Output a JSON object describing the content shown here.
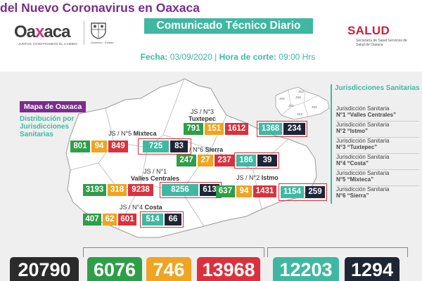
{
  "header": {
    "brand": {
      "pre": "Oa",
      "x": "x",
      "post": "aca",
      "tagline": "JUNTOS CONSTRUIMOS EL CAMBIO",
      "seal_caption": "Gobierno · Estado"
    },
    "title_line1": "Comunicado Técnico Diario",
    "title_line2": "del Nuevo Coronavirus en Oaxaca",
    "date_label": "Fecha:",
    "date_value": "03/09/2020",
    "separator": "|",
    "cut_label": "Hora de corte:",
    "cut_value": "09:00 Hrs",
    "salud": "SALUD",
    "salud_sub": "Secretaría de Salud Servicios de Salud de Oaxaca"
  },
  "map": {
    "legend_title": "Mapa de Oaxaca",
    "legend_subtitle": "Distribución por Jurisdicciones Sanitarias",
    "jurisdictions_title": "Jurisdicciones Sanitarias",
    "jurisdictions": [
      {
        "name": "Jurisdicción Sanitaria",
        "num": "N°1",
        "label": "“Valles Centrales”"
      },
      {
        "name": "Jurisdicción Sanitaria",
        "num": "N°2",
        "label": "“Istmo”"
      },
      {
        "name": "Jurisdicción Sanitaria",
        "num": "N°3",
        "label": "“Tuxtepec”"
      },
      {
        "name": "Jurisdicción Sanitaria",
        "num": "N°4",
        "label": "“Costa”"
      },
      {
        "name": "Jurisdicción Sanitaria",
        "num": "N°5",
        "label": "“Mixteca”"
      },
      {
        "name": "Jurisdicción Sanitaria",
        "num": "N°6",
        "label": "“Sierra”"
      }
    ],
    "mini_map_labels": [
      "JS5",
      "JS1",
      "JS6",
      "JS3",
      "JS2",
      "JS4"
    ],
    "regions": {
      "tuxtepec": {
        "label_pre": "JS / N°3",
        "label_name": "Tuxtepec",
        "values": [
          "791",
          "151",
          "1612",
          "1368",
          "234"
        ]
      },
      "mixteca": {
        "label_pre": "JS / N°5",
        "label_name": "Mixteca",
        "values": [
          "801",
          "94",
          "849",
          "725",
          "83"
        ]
      },
      "sierra": {
        "label_pre": "JS / N°6",
        "label_name": "Sierra",
        "values": [
          "247",
          "27",
          "237",
          "186",
          "39"
        ]
      },
      "valles": {
        "label_pre": "JS / N°1",
        "label_name": "Valles Centrales",
        "values": [
          "3193",
          "318",
          "9238",
          "8256",
          "613"
        ]
      },
      "istmo": {
        "label_pre": "JS / N°2",
        "label_name": "Istmo",
        "values": [
          "637",
          "94",
          "1431",
          "1154",
          "259"
        ]
      },
      "costa": {
        "label_pre": "JS / N°4",
        "label_name": "Costa",
        "values": [
          "407",
          "62",
          "601",
          "514",
          "66"
        ]
      }
    }
  },
  "totals": {
    "values": [
      "20790",
      "6076",
      "746",
      "13968",
      "12203",
      "1294"
    ]
  },
  "colors": {
    "green": "#2e9e49",
    "orange": "#f0a421",
    "red": "#d9323e",
    "teal": "#3fb8a2",
    "navy": "#1e2535",
    "purple": "#7a2d8c",
    "salud_red": "#d11f3c"
  }
}
